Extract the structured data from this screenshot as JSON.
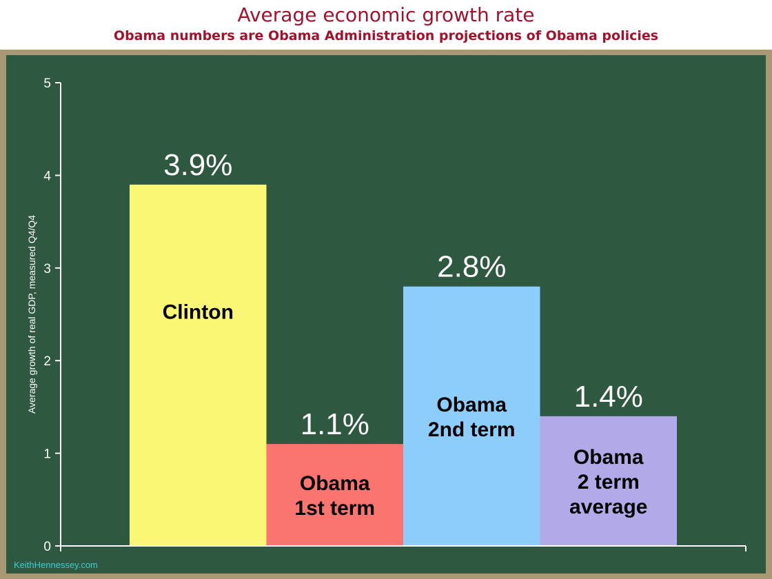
{
  "title": "Average economic growth rate",
  "subtitle": "Obama numbers are Obama Administration projections of Obama policies",
  "credit": "KeithHennessey.com",
  "colors": {
    "title": "#a3122b",
    "board": "#2f5840",
    "frame": "#a89876",
    "axis": "#ffffff"
  },
  "chart_data": {
    "type": "bar",
    "ylabel": "Average growth of real GDP, measured Q4/Q4",
    "ylim": [
      0,
      5
    ],
    "yticks": [
      0,
      1,
      2,
      3,
      4,
      5
    ],
    "grid": false,
    "categories": [
      "Clinton",
      "Obama 1st term",
      "Obama 2nd term",
      "Obama 2 term average"
    ],
    "bars": [
      {
        "value": 3.9,
        "value_label": "3.9%",
        "label_lines": [
          "Clinton"
        ],
        "color": "#fbf673"
      },
      {
        "value": 1.1,
        "value_label": "1.1%",
        "label_lines": [
          "Obama",
          "1st term"
        ],
        "color": "#fb7470"
      },
      {
        "value": 2.8,
        "value_label": "2.8%",
        "label_lines": [
          "Obama",
          "2nd term"
        ],
        "color": "#8ccdfb"
      },
      {
        "value": 1.4,
        "value_label": "1.4%",
        "label_lines": [
          "Obama",
          "2 term",
          "average"
        ],
        "color": "#b0aae8"
      }
    ]
  }
}
